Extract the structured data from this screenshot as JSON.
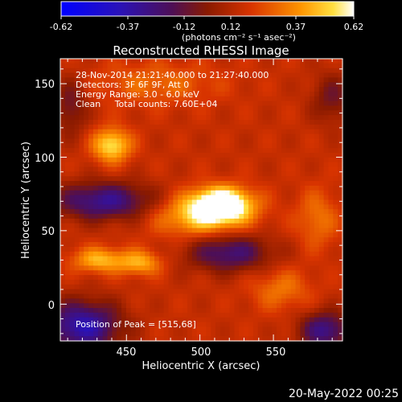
{
  "colorbar": {
    "ticks": [
      "-0.62",
      "-0.37",
      "-0.12",
      "0.12",
      "0.37",
      "0.62"
    ],
    "unit_label": "(photons cm⁻² s⁻¹ asec⁻²)",
    "range": [
      -0.62,
      0.62
    ]
  },
  "chart_data": {
    "type": "heatmap",
    "title": "Reconstructed RHESSI Image",
    "xlabel": "Heliocentric X (arcsec)",
    "ylabel": "Heliocentric Y (arcsec)",
    "xlim": [
      405,
      597
    ],
    "ylim": [
      -25,
      167
    ],
    "xticks": [
      450,
      500,
      550
    ],
    "yticks": [
      0,
      50,
      100,
      150
    ],
    "colormap": [
      "#0000ff",
      "#3c0a6e",
      "#7a1800",
      "#d23200",
      "#ff9a00",
      "#ffffff"
    ],
    "sources": [
      {
        "x": 515,
        "y": 68,
        "amp": 0.62,
        "sx": 14,
        "sy": 8
      },
      {
        "x": 500,
        "y": 60,
        "amp": 0.34,
        "sx": 22,
        "sy": 10
      },
      {
        "x": 440,
        "y": 108,
        "amp": 0.42,
        "sx": 9,
        "sy": 8
      },
      {
        "x": 432,
        "y": 30,
        "amp": 0.32,
        "sx": 13,
        "sy": 6
      },
      {
        "x": 460,
        "y": 28,
        "amp": 0.28,
        "sx": 10,
        "sy": 6
      },
      {
        "x": 580,
        "y": 58,
        "amp": 0.18,
        "sx": 10,
        "sy": 14
      },
      {
        "x": 555,
        "y": 10,
        "amp": 0.18,
        "sx": 14,
        "sy": 10
      },
      {
        "x": 470,
        "y": 150,
        "amp": 0.16,
        "sx": 30,
        "sy": 10
      }
    ],
    "holes": [
      {
        "x": 435,
        "y": 70,
        "amp": -0.42,
        "sx": 24,
        "sy": 9
      },
      {
        "x": 520,
        "y": 35,
        "amp": -0.36,
        "sx": 20,
        "sy": 9
      },
      {
        "x": 420,
        "y": -15,
        "amp": -0.5,
        "sx": 18,
        "sy": 12
      },
      {
        "x": 585,
        "y": -18,
        "amp": -0.4,
        "sx": 12,
        "sy": 9
      },
      {
        "x": 590,
        "y": 140,
        "amp": -0.2,
        "sx": 10,
        "sy": 12
      },
      {
        "x": 412,
        "y": 135,
        "amp": -0.22,
        "sx": 8,
        "sy": 14
      }
    ],
    "annotations": [
      "28-Nov-2014 21:21:40.000 to 21:27:40.000",
      "Detectors: 3F 6F 9F, Att 0",
      "Energy Range: 3.0 - 6.0 keV",
      "Clean     Total counts: 7.60E+04"
    ],
    "peak_label": "Position of Peak = [515,68]"
  },
  "footer_date": "20-May-2022 00:25"
}
